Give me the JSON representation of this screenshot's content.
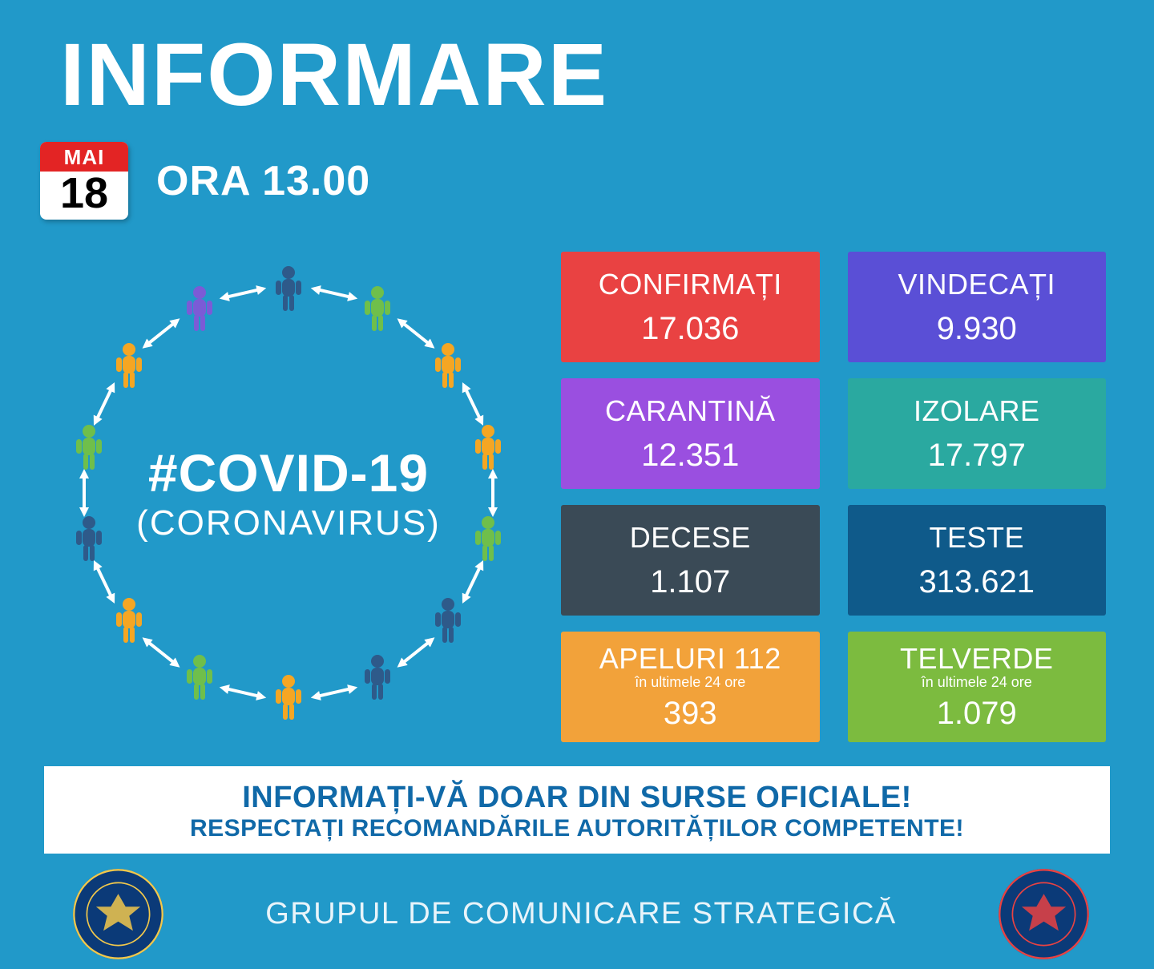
{
  "title": "INFORMARE",
  "date": {
    "month": "MAI",
    "day": "18"
  },
  "time_label": "ORA 13.00",
  "covid": {
    "hashtag": "#COVID-19",
    "subtitle": "(CORONAVIRUS)",
    "people_colors": [
      "#2e5a8a",
      "#6fbf4b",
      "#f5a623",
      "#f5a623",
      "#6fbf4b",
      "#2e5a8a",
      "#2e5a8a",
      "#f5a623",
      "#6fbf4b",
      "#f5a623",
      "#2e5a8a",
      "#6fbf4b",
      "#f5a623",
      "#7b5bd6"
    ],
    "arrow_color": "#ffffff"
  },
  "stats": [
    {
      "label": "CONFIRMAȚI",
      "value": "17.036",
      "color": "#e94242"
    },
    {
      "label": "VINDECAȚI",
      "value": "9.930",
      "color": "#5a4fd6"
    },
    {
      "label": "CARANTINĂ",
      "value": "12.351",
      "color": "#9a4fe0"
    },
    {
      "label": "IZOLARE",
      "value": "17.797",
      "color": "#2aa9a0"
    },
    {
      "label": "DECESE",
      "value": "1.107",
      "color": "#3a4a56"
    },
    {
      "label": "TESTE",
      "value": "313.621",
      "color": "#0f5a8a"
    },
    {
      "label": "APELURI 112",
      "sublabel": "în ultimele 24 ore",
      "value": "393",
      "color": "#f2a23a"
    },
    {
      "label": "TELVERDE",
      "sublabel": "în ultimele 24 ore",
      "value": "1.079",
      "color": "#7cbb3f"
    }
  ],
  "banner": {
    "line1": "INFORMAȚI-VĂ DOAR DIN SURSE OFICIALE!",
    "line2": "RESPECTAȚI RECOMANDĂRILE AUTORITĂȚILOR COMPETENTE!"
  },
  "footer": {
    "text": "GRUPUL DE COMUNICARE STRATEGICĂ",
    "seal_left": {
      "bg": "#0b3a78",
      "ring": "#f2c84b"
    },
    "seal_right": {
      "bg": "#0b3a78",
      "ring": "#e94242"
    }
  }
}
